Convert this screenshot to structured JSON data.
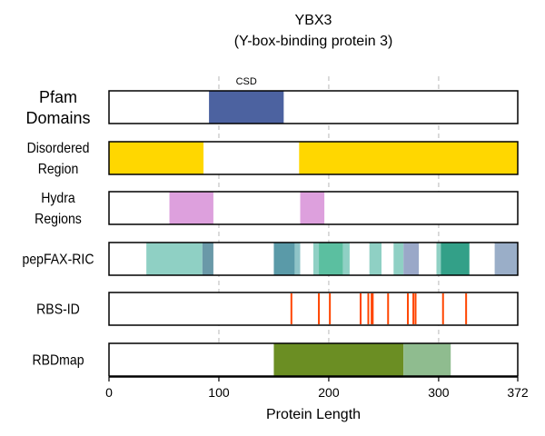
{
  "chart_data": {
    "type": "bar",
    "title": "YBX3",
    "subtitle": "(Y-box-binding protein 3)",
    "xlabel": "Protein Length",
    "xlim": [
      0,
      372
    ],
    "xticks": [
      0,
      100,
      200,
      300,
      372
    ],
    "xtick_labels": [
      "0",
      "100",
      "200",
      "300",
      "372"
    ],
    "gridlines_x": [
      100,
      200,
      300
    ],
    "tracks": [
      {
        "label_lines": [
          "Pfam",
          "Domains"
        ],
        "segments": [
          {
            "start": 91,
            "end": 159,
            "color": "#4c62a0",
            "label": "CSD"
          }
        ]
      },
      {
        "label_lines": [
          "Disordered",
          "Region"
        ],
        "segments": [
          {
            "start": 0,
            "end": 86,
            "color": "#ffd700"
          },
          {
            "start": 173,
            "end": 372,
            "color": "#ffd700"
          }
        ]
      },
      {
        "label_lines": [
          "Hydra",
          "Regions"
        ],
        "segments": [
          {
            "start": 55,
            "end": 95,
            "color": "#dda0dd"
          },
          {
            "start": 174,
            "end": 196,
            "color": "#dda0dd"
          }
        ]
      },
      {
        "label_lines": [
          "pepFAX-RIC"
        ],
        "segments": [
          {
            "start": 34,
            "end": 85,
            "color": "#8fd0c4"
          },
          {
            "start": 85,
            "end": 95,
            "color": "#6a99a8"
          },
          {
            "start": 150,
            "end": 169,
            "color": "#5a9aa8"
          },
          {
            "start": 169,
            "end": 174,
            "color": "#8fc4c8"
          },
          {
            "start": 186,
            "end": 191,
            "color": "#8fd0c4"
          },
          {
            "start": 191,
            "end": 213,
            "color": "#5bbfa0"
          },
          {
            "start": 213,
            "end": 219,
            "color": "#8fd0c4"
          },
          {
            "start": 237,
            "end": 248,
            "color": "#8fd0c4"
          },
          {
            "start": 259,
            "end": 268,
            "color": "#8fd0c4"
          },
          {
            "start": 268,
            "end": 282,
            "color": "#9aa8c8"
          },
          {
            "start": 298,
            "end": 302,
            "color": "#8fd0c4"
          },
          {
            "start": 302,
            "end": 328,
            "color": "#33a088"
          },
          {
            "start": 351,
            "end": 372,
            "color": "#9aaec8"
          }
        ]
      },
      {
        "label_lines": [
          "RBS-ID"
        ],
        "marks": [
          166,
          191,
          201,
          229,
          236,
          239,
          240,
          254,
          272,
          277,
          279,
          304,
          325
        ],
        "color": "#ff4500"
      },
      {
        "label_lines": [
          "RBDmap"
        ],
        "segments": [
          {
            "start": 150,
            "end": 268,
            "color": "#6b8e23"
          },
          {
            "start": 268,
            "end": 311,
            "color": "#8fbc8f"
          }
        ]
      }
    ]
  }
}
